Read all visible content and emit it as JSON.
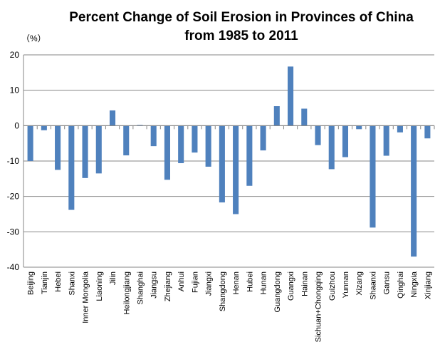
{
  "chart_data": {
    "type": "bar",
    "title_lines": [
      "Percent Change of Soil Erosion  in Provinces of China",
      "from 1985 to 2011"
    ],
    "ylabel": "（%）",
    "xlabel": "",
    "ylim": [
      -40,
      20
    ],
    "yticks": [
      20,
      10,
      0,
      -10,
      -20,
      -30,
      -40
    ],
    "grid": true,
    "legend": "none",
    "bar_color": "#4F81BD",
    "categories": [
      "Beijing",
      "Tianjin",
      "Hebei",
      "Shanxi",
      "Inner Mongolia",
      "Liaoning",
      "Jilin",
      "Heilongjiang",
      "Shanghai",
      "Jiangsu",
      "Zhejiang",
      "Anhui",
      "Fujian",
      "Jiangxi",
      "Shangdong",
      "Henan",
      "Hubei",
      "Hunan",
      "Guangdong",
      "Guangxi",
      "Hainan",
      "Sichuan+Chongqing",
      "Guizhou",
      "Yunnan",
      "Xizang",
      "Shaanxi",
      "Gansu",
      "Qinghai",
      "Ningxia",
      "Xinjiang"
    ],
    "values": [
      -10.0,
      -1.3,
      -12.5,
      -23.8,
      -14.8,
      -13.5,
      4.3,
      -8.4,
      0.2,
      -5.8,
      -15.3,
      -10.6,
      -7.6,
      -11.6,
      -21.7,
      -25.0,
      -17.0,
      -7.0,
      5.5,
      16.7,
      4.8,
      -5.5,
      -12.3,
      -8.9,
      -1.0,
      -28.8,
      -8.5,
      -1.9,
      -37.0,
      -3.6
    ]
  }
}
